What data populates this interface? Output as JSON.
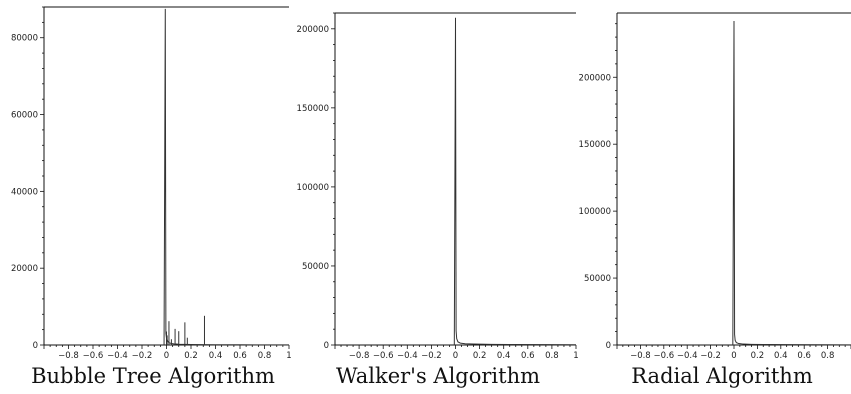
{
  "chart_data": [
    {
      "type": "line",
      "title": "Bubble Tree Algorithm",
      "xlim": [
        -1,
        1
      ],
      "ylim": [
        0,
        88000
      ],
      "x_ticks": [
        -0.8,
        -0.6,
        -0.4,
        -0.2,
        0,
        0.2,
        0.4,
        0.6,
        0.8,
        1
      ],
      "x_tick_labels": [
        "−0.8",
        "−0.6",
        "−0.4",
        "−0.2",
        "0",
        "0.2",
        "0.4",
        "0.6",
        "0.8",
        "1"
      ],
      "y_ticks": [
        0,
        20000,
        40000,
        60000,
        80000
      ],
      "y_tick_labels": [
        "0",
        "20000",
        "40000",
        "60000",
        "80000"
      ],
      "grid": false,
      "line_color": "#333333",
      "series": [
        {
          "x": [
            -0.02,
            -0.01,
            -0.005,
            0,
            0.01,
            0.02,
            0.04,
            0.06,
            0.08,
            0.1,
            0.15,
            0.2,
            0.3,
            0.4,
            0.5,
            0.6,
            0.8,
            1.0
          ],
          "y": [
            0,
            87500,
            3000,
            1800,
            1000,
            600,
            400,
            300,
            250,
            200,
            150,
            120,
            100,
            80,
            60,
            50,
            30,
            20
          ]
        }
      ],
      "spikes": [
        {
          "x": 0,
          "y": 3500
        },
        {
          "x": 0.005,
          "y": 2500
        },
        {
          "x": 0.02,
          "y": 6200
        },
        {
          "x": 0.04,
          "y": 1500
        },
        {
          "x": 0.07,
          "y": 4200
        },
        {
          "x": 0.1,
          "y": 3600
        },
        {
          "x": 0.15,
          "y": 5900
        },
        {
          "x": 0.17,
          "y": 1900
        },
        {
          "x": 0.31,
          "y": 7600
        }
      ]
    },
    {
      "type": "line",
      "title": "Walker's Algorithm",
      "xlim": [
        -1,
        1
      ],
      "ylim": [
        0,
        210000
      ],
      "x_ticks": [
        -0.8,
        -0.6,
        -0.4,
        -0.2,
        0,
        0.2,
        0.4,
        0.6,
        0.8,
        1
      ],
      "x_tick_labels": [
        "−0.8",
        "−0.6",
        "−0.4",
        "−0.2",
        "0",
        "0.2",
        "0.4",
        "0.6",
        "0.8",
        "1"
      ],
      "y_ticks": [
        0,
        50000,
        100000,
        150000,
        200000
      ],
      "y_tick_labels": [
        "0",
        "50000",
        "100000",
        "150000",
        "200000"
      ],
      "grid": false,
      "line_color": "#333333",
      "series": [
        {
          "x": [
            -0.01,
            0,
            0.005,
            0.01,
            0.02,
            0.04,
            0.08,
            0.15,
            0.3,
            0.5,
            0.8,
            1.0
          ],
          "y": [
            0,
            207000,
            9000,
            4000,
            2000,
            1200,
            800,
            600,
            400,
            300,
            200,
            150
          ]
        }
      ],
      "spikes": []
    },
    {
      "type": "line",
      "title": "Radial Algorithm",
      "xlim": [
        -1,
        1
      ],
      "ylim": [
        0,
        248000
      ],
      "x_ticks": [
        -0.8,
        -0.6,
        -0.4,
        -0.2,
        0,
        0.2,
        0.4,
        0.6,
        0.8
      ],
      "x_tick_labels": [
        "−0.8",
        "−0.6",
        "−0.4",
        "−0.2",
        "0",
        "0.2",
        "0.4",
        "0.6",
        "0.8"
      ],
      "y_ticks": [
        0,
        50000,
        100000,
        150000,
        200000
      ],
      "y_tick_labels": [
        "0",
        "50000",
        "100000",
        "150000",
        "200000"
      ],
      "grid": false,
      "line_color": "#333333",
      "series": [
        {
          "x": [
            -0.01,
            0,
            0.005,
            0.01,
            0.02,
            0.04,
            0.08,
            0.15,
            0.3,
            0.5,
            0.8,
            1.0
          ],
          "y": [
            0,
            242000,
            8000,
            3500,
            1800,
            1100,
            700,
            500,
            350,
            250,
            180,
            120
          ]
        }
      ],
      "spikes": []
    }
  ]
}
